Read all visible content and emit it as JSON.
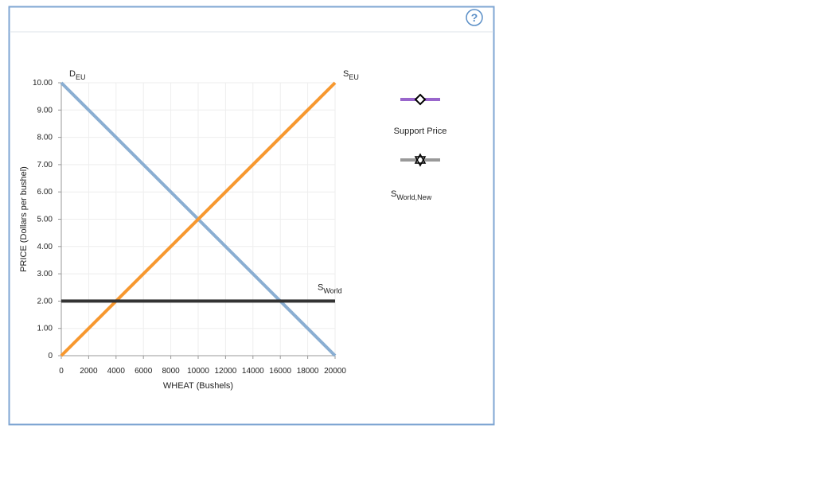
{
  "chart_data": {
    "type": "line",
    "x": [
      0,
      20000
    ],
    "xlabel": "WHEAT (Bushels)",
    "ylabel": "PRICE (Dollars per bushel)",
    "xlim": [
      0,
      20000
    ],
    "ylim": [
      0,
      10
    ],
    "xticks": [
      0,
      2000,
      4000,
      6000,
      8000,
      10000,
      12000,
      14000,
      16000,
      18000,
      20000
    ],
    "yticks": [
      0,
      {
        "value": 1,
        "label": "1.00"
      },
      {
        "value": 2,
        "label": "2.00"
      },
      {
        "value": 3,
        "label": "3.00"
      },
      {
        "value": 4,
        "label": "4.00"
      },
      {
        "value": 5,
        "label": "5.00"
      },
      {
        "value": 6,
        "label": "6.00"
      },
      {
        "value": 7,
        "label": "7.00"
      },
      {
        "value": 8,
        "label": "8.00"
      },
      {
        "value": 9,
        "label": "9.00"
      },
      {
        "value": 10,
        "label": "10.00"
      }
    ],
    "grid": true,
    "series": [
      {
        "name": "D",
        "subscript": "EU",
        "color": "#8aaed2",
        "values": [
          10,
          0
        ]
      },
      {
        "name": "S",
        "subscript": "EU",
        "color": "#f7982f",
        "values": [
          0,
          10
        ]
      },
      {
        "name": "S",
        "subscript": "World",
        "color": "#333333",
        "values": [
          2,
          2
        ]
      }
    ],
    "tools": [
      {
        "name": "Support Price",
        "color": "#9966cc",
        "marker": "diamond"
      },
      {
        "name": "S",
        "subscript": "World,New",
        "color": "#999999",
        "marker": "star"
      }
    ]
  }
}
